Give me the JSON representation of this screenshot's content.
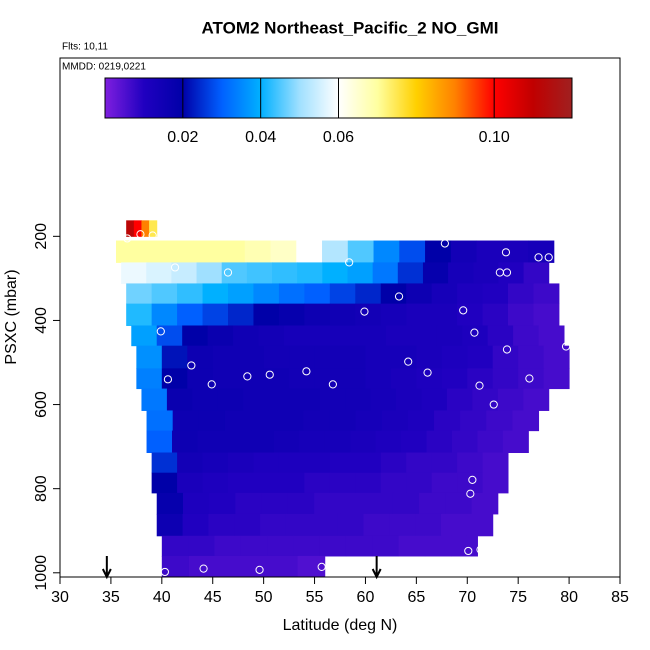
{
  "chart_data": {
    "type": "curtain",
    "title": "ATOM2 Northeast_Pacific_2 NO_GMI",
    "flights_label": "Flts: 10,11",
    "dates_label": "MMDD: 0219,0221",
    "x_label": "Latitude (deg N)",
    "y_label": "PSXC (mbar)",
    "xlim": [
      30,
      85
    ],
    "xticks": [
      30,
      35,
      40,
      45,
      50,
      55,
      60,
      65,
      70,
      75,
      80,
      85
    ],
    "ylim": [
      1010,
      -224
    ],
    "yticks": [
      200,
      400,
      600,
      800,
      1000
    ],
    "zlim": [
      0,
      0.12
    ],
    "zticks": [
      0.02,
      0.04,
      0.06,
      {
        "value": 0.1,
        "label": "0.10"
      }
    ],
    "colorscale": [
      "#7f1fdf",
      "#2000c0",
      "#0000a8",
      "#0060ff",
      "#00b0ff",
      "#a0e0ff",
      "#ffffff",
      "#ffffa0",
      "#ffd000",
      "#ff8000",
      "#ff0000",
      "#c00000",
      "#a02020"
    ],
    "rows": [
      {
        "p": [
          162,
          200
        ],
        "lat": [
          36.5,
          39.5
        ],
        "values": [
          0.112,
          0.1,
          0.09,
          0.075
        ]
      },
      {
        "p": [
          210,
          262
        ],
        "lat": [
          35.5,
          78.5
        ],
        "values": [
          0.07,
          0.07,
          0.07,
          0.07,
          0.07,
          0.068,
          0.066,
          0.06,
          0.052,
          0.045,
          0.035,
          0.028,
          0.02,
          0.014,
          0.012,
          0.012,
          0.013
        ]
      },
      {
        "p": [
          262,
          312
        ],
        "lat": [
          36,
          78
        ],
        "values": [
          0.058,
          0.056,
          0.054,
          0.05,
          0.045,
          0.044,
          0.043,
          0.042,
          0.04,
          0.038,
          0.033,
          0.025,
          0.018,
          0.013,
          0.012,
          0.01,
          0.008
        ]
      },
      {
        "p": [
          312,
          360
        ],
        "lat": [
          36.5,
          79
        ],
        "values": [
          0.047,
          0.045,
          0.043,
          0.04,
          0.038,
          0.035,
          0.032,
          0.03,
          0.027,
          0.024,
          0.02,
          0.016,
          0.013,
          0.011,
          0.01,
          0.008,
          0.007
        ]
      },
      {
        "p": [
          360,
          412
        ],
        "lat": [
          36.5,
          79
        ],
        "values": [
          0.042,
          0.035,
          0.03,
          0.027,
          0.024,
          0.02,
          0.018,
          0.016,
          0.015,
          0.014,
          0.013,
          0.012,
          0.012,
          0.01,
          0.009,
          0.007,
          0.006
        ]
      },
      {
        "p": [
          412,
          460
        ],
        "lat": [
          37,
          79.5
        ],
        "values": [
          0.038,
          0.028,
          0.02,
          0.017,
          0.015,
          0.014,
          0.013,
          0.013,
          0.013,
          0.013,
          0.012,
          0.012,
          0.012,
          0.011,
          0.009,
          0.007,
          0.006
        ]
      },
      {
        "p": [
          460,
          514
        ],
        "lat": [
          37.5,
          80
        ],
        "values": [
          0.036,
          0.022,
          0.016,
          0.015,
          0.015,
          0.014,
          0.014,
          0.014,
          0.014,
          0.013,
          0.013,
          0.012,
          0.011,
          0.01,
          0.008,
          0.007,
          0.006
        ]
      },
      {
        "p": [
          514,
          562
        ],
        "lat": [
          37.5,
          80
        ],
        "values": [
          0.034,
          0.02,
          0.016,
          0.015,
          0.015,
          0.015,
          0.014,
          0.014,
          0.014,
          0.013,
          0.012,
          0.011,
          0.01,
          0.009,
          0.008,
          0.007,
          0.006
        ]
      },
      {
        "p": [
          562,
          614
        ],
        "lat": [
          38,
          78
        ],
        "values": [
          0.033,
          0.017,
          0.016,
          0.016,
          0.015,
          0.015,
          0.015,
          0.014,
          0.014,
          0.013,
          0.012,
          0.011,
          0.009,
          0.008,
          0.007,
          0.006
        ]
      },
      {
        "p": [
          614,
          662
        ],
        "lat": [
          38.5,
          77
        ],
        "values": [
          0.032,
          0.016,
          0.016,
          0.015,
          0.015,
          0.015,
          0.014,
          0.014,
          0.013,
          0.012,
          0.011,
          0.009,
          0.008,
          0.007,
          0.006
        ]
      },
      {
        "p": [
          662,
          714
        ],
        "lat": [
          38.5,
          76
        ],
        "values": [
          0.03,
          0.016,
          0.015,
          0.015,
          0.015,
          0.014,
          0.013,
          0.013,
          0.012,
          0.011,
          0.01,
          0.009,
          0.008,
          0.007,
          0.006
        ]
      },
      {
        "p": [
          714,
          762
        ],
        "lat": [
          39,
          74
        ],
        "values": [
          0.025,
          0.014,
          0.013,
          0.012,
          0.011,
          0.011,
          0.011,
          0.01,
          0.01,
          0.009,
          0.008,
          0.008,
          0.007,
          0.006
        ]
      },
      {
        "p": [
          762,
          810
        ],
        "lat": [
          39,
          74
        ],
        "values": [
          0.02,
          0.012,
          0.011,
          0.01,
          0.01,
          0.01,
          0.009,
          0.009,
          0.009,
          0.008,
          0.008,
          0.007,
          0.007,
          0.006
        ]
      },
      {
        "p": [
          810,
          860
        ],
        "lat": [
          39.5,
          73
        ],
        "values": [
          0.018,
          0.011,
          0.01,
          0.009,
          0.009,
          0.009,
          0.008,
          0.008,
          0.008,
          0.008,
          0.007,
          0.007,
          0.006
        ]
      },
      {
        "p": [
          860,
          912
        ],
        "lat": [
          39.5,
          72.5
        ],
        "values": [
          0.016,
          0.01,
          0.009,
          0.009,
          0.008,
          0.008,
          0.008,
          0.008,
          0.007,
          0.007,
          0.007,
          0.006,
          0.006
        ]
      },
      {
        "p": [
          912,
          960
        ],
        "lat": [
          40,
          71
        ],
        "values": [
          0.008,
          0.008,
          0.007,
          0.007,
          0.007,
          0.007,
          0.007,
          0.007,
          0.007,
          0.006,
          0.006,
          0.006
        ]
      },
      {
        "p": [
          960,
          1010
        ],
        "lat": [
          40,
          56
        ],
        "values": [
          0.007,
          0.006,
          0.006,
          0.006,
          0.006,
          0.005
        ]
      }
    ],
    "points": {
      "lat": [
        36.6,
        37.9,
        39.1,
        41.3,
        46.5,
        58.4,
        67.8,
        73.8,
        73.2,
        73.9,
        77.0,
        78.0,
        63.3,
        59.9,
        69.6,
        70.7,
        39.9,
        42.9,
        40.6,
        44.9,
        48.4,
        50.6,
        54.2,
        56.8,
        64.2,
        66.1,
        73.9,
        79.7,
        71.2,
        76.1,
        72.6,
        70.5,
        70.3,
        71.9,
        71.3,
        70.1,
        40.3,
        44.1,
        49.6,
        55.7
      ],
      "p": [
        205,
        195,
        198,
        274,
        286,
        262,
        217,
        238,
        286,
        286,
        250,
        250,
        343,
        379,
        376,
        429,
        426,
        507,
        540,
        552,
        533,
        529,
        521,
        552,
        498,
        524,
        469,
        462,
        555,
        538,
        600,
        779,
        812,
        931,
        945,
        948,
        998,
        990,
        993,
        986
      ]
    },
    "arrows_lat": [
      34.6,
      61.1
    ]
  }
}
